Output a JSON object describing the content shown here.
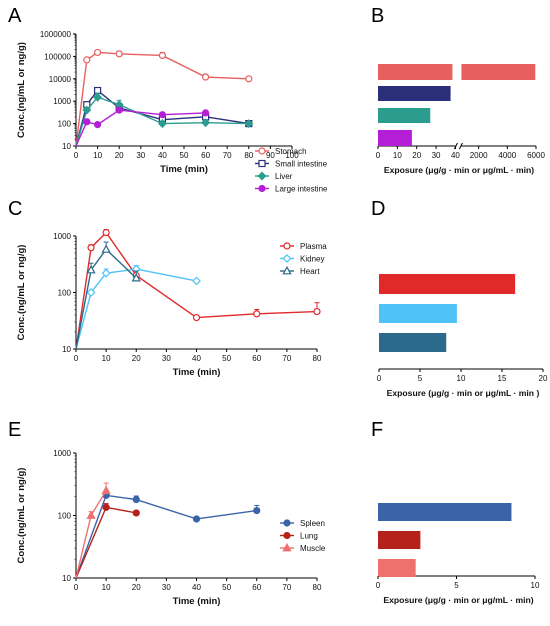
{
  "chart_data": [
    {
      "panel": "A",
      "type": "line",
      "xlabel": "Time (min)",
      "ylabel": "Conc.(ng/mL or ng/g)",
      "yscale": "log",
      "xlim": [
        0,
        100
      ],
      "ylim": [
        10,
        1000000
      ],
      "xticks": [
        "0",
        "10",
        "20",
        "30",
        "40",
        "50",
        "60",
        "70",
        "80",
        "90",
        "100"
      ],
      "yticks": [
        "10",
        "100",
        "1000",
        "10000",
        "100000",
        "1000000"
      ],
      "legend_position": "right",
      "series": [
        {
          "name": "Stomach",
          "color": "#e85f5f",
          "marker": "circle-open",
          "x": [
            0,
            5,
            10,
            20,
            40,
            60,
            80
          ],
          "y": [
            10,
            70000,
            150000,
            130000,
            110000,
            12000,
            10000
          ],
          "err": [
            0,
            8000,
            20000,
            40000,
            40000,
            4000,
            1500
          ]
        },
        {
          "name": "Small intestine",
          "color": "#2b2f7a",
          "marker": "square-open",
          "x": [
            0,
            5,
            10,
            20,
            40,
            60,
            80
          ],
          "y": [
            10,
            700,
            3000,
            500,
            150,
            200,
            100
          ],
          "err": [
            0,
            200,
            500,
            150,
            40,
            40,
            10
          ]
        },
        {
          "name": "Liver",
          "color": "#2a9d8f",
          "marker": "diamond",
          "x": [
            0,
            5,
            10,
            20,
            40,
            60,
            80
          ],
          "y": [
            10,
            400,
            1500,
            700,
            100,
            110,
            100
          ],
          "err": [
            0,
            100,
            800,
            400,
            30,
            30,
            10
          ]
        },
        {
          "name": "Large intestine",
          "color": "#b31ed6",
          "marker": "circle",
          "x": [
            0,
            5,
            10,
            20,
            40,
            60
          ],
          "y": [
            10,
            120,
            90,
            400,
            250,
            300
          ],
          "err": [
            0,
            40,
            20,
            100,
            60,
            60
          ]
        }
      ]
    },
    {
      "panel": "B",
      "type": "bar",
      "orientation": "horizontal",
      "xlabel": "Exposure (μg/g · min or μg/mL · min)",
      "xticks": [
        "0",
        "10",
        "20",
        "30",
        "40",
        "2000",
        "4000",
        "6000"
      ],
      "axis_break": [
        40,
        800
      ],
      "categories": [
        "Stomach",
        "Small intestine",
        "Liver",
        "Large intestine"
      ],
      "values": [
        5950,
        37.5,
        27,
        17.5
      ],
      "colors": [
        "#e85f5f",
        "#2b2f7a",
        "#2a9d8f",
        "#b31ed6"
      ]
    },
    {
      "panel": "C",
      "type": "line",
      "xlabel": "Time (min)",
      "ylabel": "Conc.(ng/mL or ng/g)",
      "yscale": "log",
      "xlim": [
        0,
        80
      ],
      "ylim": [
        10,
        1000
      ],
      "xticks": [
        "0",
        "10",
        "20",
        "30",
        "40",
        "50",
        "60",
        "70",
        "80"
      ],
      "yticks": [
        "10",
        "100",
        "1000"
      ],
      "legend_position": "right",
      "series": [
        {
          "name": "Plasma",
          "color": "#e02a2a",
          "marker": "circle-open",
          "x": [
            0,
            5,
            10,
            20,
            40,
            60,
            80
          ],
          "y": [
            10,
            620,
            1150,
            200,
            36,
            42,
            46
          ],
          "err": [
            0,
            80,
            150,
            50,
            3,
            8,
            20
          ]
        },
        {
          "name": "Kidney",
          "color": "#4fc3f7",
          "marker": "diamond-open",
          "x": [
            0,
            5,
            10,
            20,
            40
          ],
          "y": [
            10,
            100,
            220,
            260,
            160
          ],
          "err": [
            0,
            10,
            40,
            40,
            10
          ]
        },
        {
          "name": "Heart",
          "color": "#2b6a8a",
          "marker": "triangle-open",
          "x": [
            0,
            5,
            10,
            20
          ],
          "y": [
            10,
            250,
            580,
            180
          ],
          "err": [
            0,
            80,
            200,
            60
          ]
        }
      ]
    },
    {
      "panel": "D",
      "type": "bar",
      "orientation": "horizontal",
      "xlabel": "Exposure (μg/g · min or μg/mL · min )",
      "xticks": [
        "0",
        "5",
        "10",
        "15",
        "20"
      ],
      "xlim": [
        0,
        20
      ],
      "categories": [
        "Plasma",
        "Kidney",
        "Heart"
      ],
      "values": [
        16.6,
        9.5,
        8.2
      ],
      "colors": [
        "#e02a2a",
        "#4fc3f7",
        "#2b6a8a"
      ]
    },
    {
      "panel": "E",
      "type": "line",
      "xlabel": "Time (min)",
      "ylabel": "Conc.(ng/mL or ng/g)",
      "yscale": "log",
      "xlim": [
        0,
        80
      ],
      "ylim": [
        10,
        1000
      ],
      "xticks": [
        "0",
        "10",
        "20",
        "30",
        "40",
        "50",
        "60",
        "70",
        "80"
      ],
      "yticks": [
        "10",
        "100",
        "1000"
      ],
      "legend_position": "right",
      "series": [
        {
          "name": "Spleen",
          "color": "#3b63a8",
          "marker": "circle",
          "x": [
            0,
            10,
            20,
            40,
            60
          ],
          "y": [
            10,
            210,
            180,
            88,
            120
          ],
          "err": [
            0,
            40,
            25,
            5,
            25
          ]
        },
        {
          "name": "Lung",
          "color": "#b5221b",
          "marker": "circle",
          "x": [
            0,
            10,
            20
          ],
          "y": [
            10,
            135,
            110
          ],
          "err": [
            0,
            20,
            5
          ]
        },
        {
          "name": "Muscle",
          "color": "#f07070",
          "marker": "triangle",
          "x": [
            0,
            5,
            10
          ],
          "y": [
            10,
            100,
            250
          ],
          "err": [
            0,
            15,
            80
          ]
        }
      ]
    },
    {
      "panel": "F",
      "type": "bar",
      "orientation": "horizontal",
      "xlabel": "Exposure (μg/g · min or μg/mL · min)",
      "xticks": [
        "0",
        "5",
        "10"
      ],
      "xlim": [
        0,
        10
      ],
      "categories": [
        "Spleen",
        "Lung",
        "Muscle"
      ],
      "values": [
        8.5,
        2.7,
        2.4
      ],
      "colors": [
        "#3b63a8",
        "#b5221b",
        "#f07070"
      ]
    }
  ]
}
